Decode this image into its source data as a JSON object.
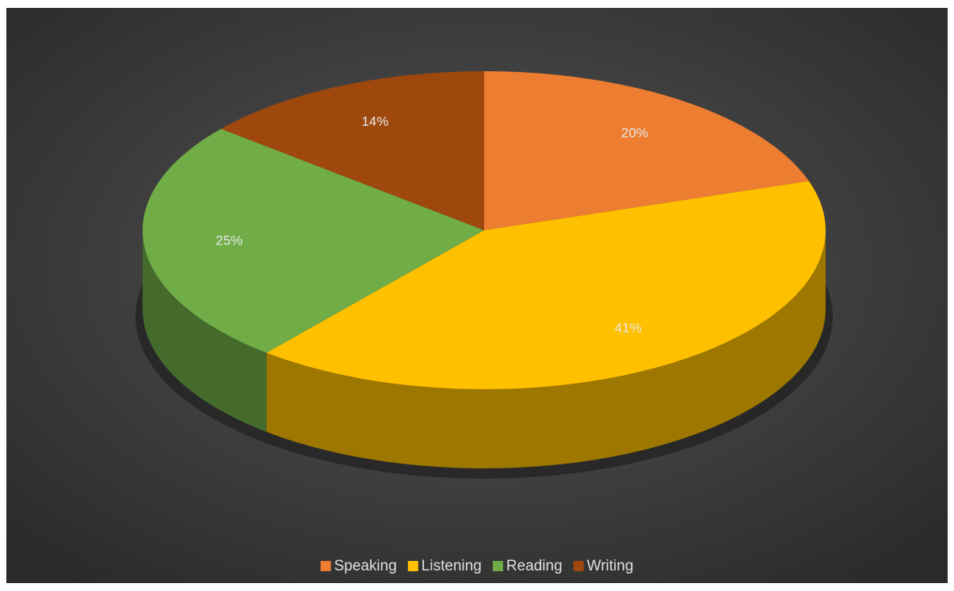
{
  "chart_data": {
    "type": "pie3d",
    "categories": [
      "Speaking",
      "Listening",
      "Reading",
      "Writing"
    ],
    "values": [
      20,
      41,
      25,
      14
    ],
    "value_labels": [
      "20%",
      "41%",
      "25%",
      "14%"
    ],
    "colors": [
      "#ed7d31",
      "#ffc000",
      "#70ad47",
      "#9e480e"
    ],
    "legend": "bottom"
  }
}
